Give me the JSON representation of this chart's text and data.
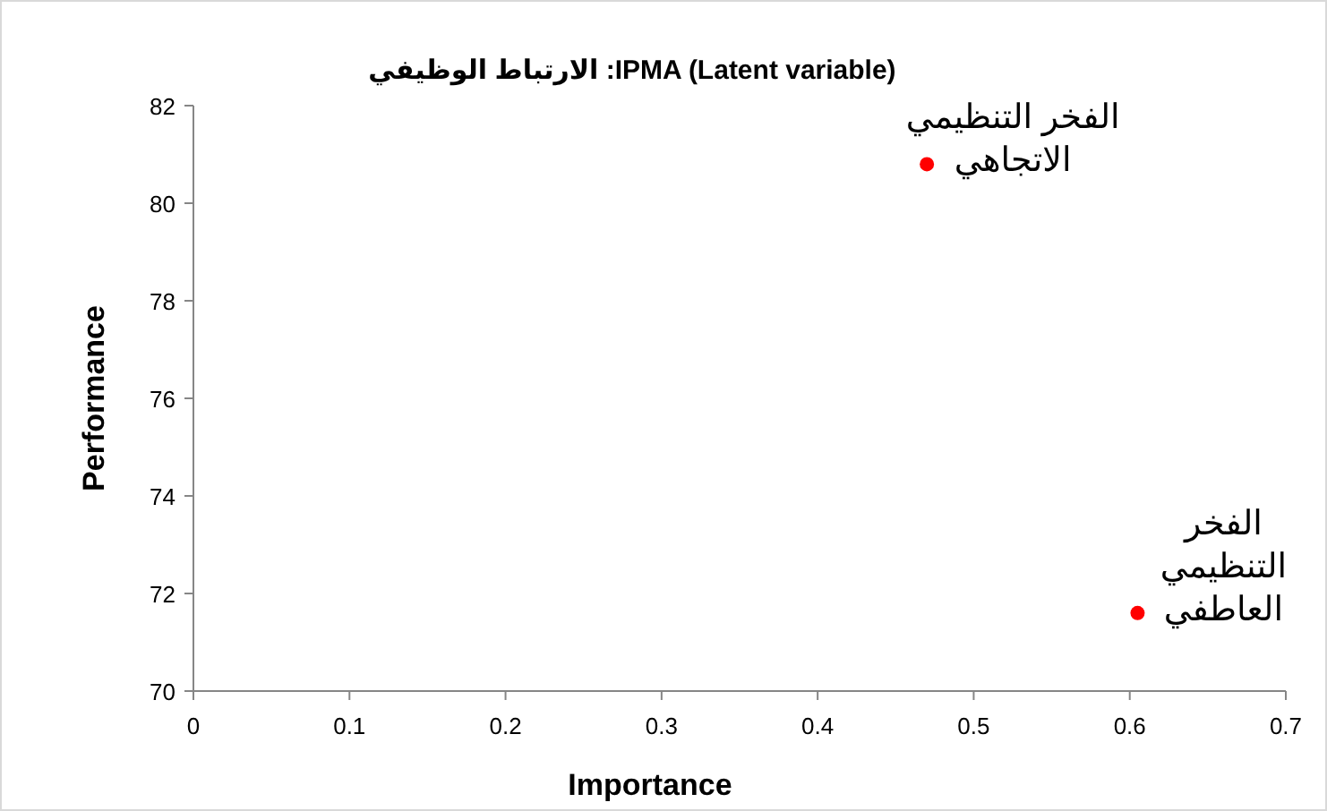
{
  "chart_data": {
    "type": "scatter",
    "title": "IPMA (Latent variable): الارتباط الوظيفي",
    "xlabel": "Importance",
    "ylabel": "Performance",
    "x": [
      0.47,
      0.605
    ],
    "series": [
      {
        "color": "#ff0000",
        "values": [
          80.8,
          71.6
        ]
      }
    ],
    "marker": "circle",
    "grid": false,
    "xlim": [
      0,
      0.7
    ],
    "xticks": [
      0,
      0.1,
      0.2,
      0.3,
      0.4,
      0.5,
      0.6,
      0.7
    ],
    "ylim": [
      70,
      82
    ],
    "yticks": [
      70,
      72,
      74,
      76,
      78,
      80,
      82
    ],
    "annotations": [
      {
        "text": "الفخر التنظيمي\nالاتجاهي",
        "x": 0.47,
        "y": 80.8
      },
      {
        "text": "الفخر\nالتنظيمي\nالعاطفي",
        "x": 0.605,
        "y": 71.6
      }
    ]
  }
}
